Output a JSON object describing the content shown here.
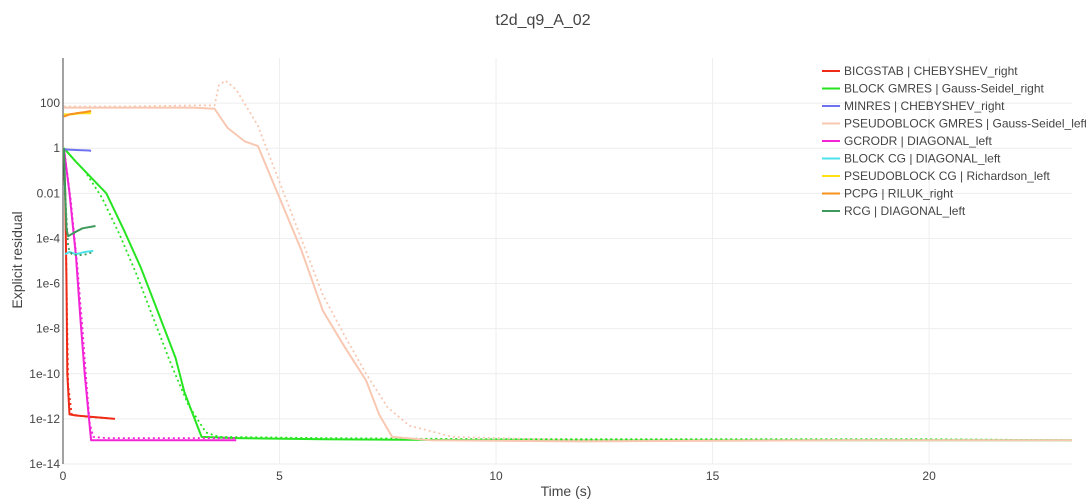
{
  "chart_data": {
    "type": "line",
    "title": "t2d_q9_A_02",
    "xlabel": "Time (s)",
    "ylabel": "Explicit residual",
    "y_scale": "log",
    "xlim": [
      0,
      23.3
    ],
    "ylim_log10": [
      -14,
      4
    ],
    "grid": true,
    "legend_position": "top-right",
    "x_ticks": [
      0,
      5,
      10,
      15,
      20
    ],
    "x_tick_labels": [
      "0",
      "5",
      "10",
      "15",
      "20"
    ],
    "y_ticks_log10": [
      2,
      0,
      -2,
      -4,
      -6,
      -8,
      -10,
      -12,
      -14
    ],
    "y_tick_labels": [
      "100",
      "1",
      "0.01",
      "1e-4",
      "1e-6",
      "1e-8",
      "1e-10",
      "1e-12",
      "1e-14"
    ],
    "series": [
      {
        "name": "BICGSTAB | CHEBYSHEV_right",
        "color": "#ef2b17",
        "points": [
          [
            0.02,
            0
          ],
          [
            0.05,
            -2
          ],
          [
            0.08,
            -6
          ],
          [
            0.1,
            -10
          ],
          [
            0.15,
            -11.8
          ],
          [
            0.3,
            -11.85
          ],
          [
            0.6,
            -11.9
          ],
          [
            0.9,
            -11.95
          ],
          [
            1.2,
            -12
          ]
        ],
        "dotted_points": [
          [
            0.02,
            0
          ],
          [
            0.06,
            -3
          ],
          [
            0.09,
            -7
          ],
          [
            0.12,
            -10.5
          ],
          [
            0.2,
            -11.8
          ],
          [
            0.5,
            -11.9
          ],
          [
            0.9,
            -11.95
          ],
          [
            1.2,
            -12
          ]
        ]
      },
      {
        "name": "BLOCK GMRES | Gauss-Seidel_right",
        "color": "#27e421",
        "points": [
          [
            0.02,
            0
          ],
          [
            0.3,
            -0.6
          ],
          [
            0.6,
            -1.2
          ],
          [
            1.0,
            -2.0
          ],
          [
            1.4,
            -3.6
          ],
          [
            1.8,
            -5.3
          ],
          [
            2.2,
            -7.3
          ],
          [
            2.6,
            -9.3
          ],
          [
            2.8,
            -10.8
          ],
          [
            3.0,
            -11.8
          ],
          [
            3.2,
            -12.8
          ],
          [
            4.0,
            -12.85
          ],
          [
            6.0,
            -12.9
          ],
          [
            10.0,
            -12.95
          ],
          [
            15.0,
            -12.95
          ],
          [
            20.0,
            -12.95
          ],
          [
            23.3,
            -12.95
          ]
        ],
        "dotted_points": [
          [
            0.02,
            0
          ],
          [
            0.25,
            -0.5
          ],
          [
            0.5,
            -1.0
          ],
          [
            0.9,
            -2.2
          ],
          [
            1.3,
            -3.8
          ],
          [
            1.7,
            -5.6
          ],
          [
            2.1,
            -7.6
          ],
          [
            2.5,
            -9.6
          ],
          [
            2.9,
            -11.4
          ],
          [
            3.3,
            -12.6
          ],
          [
            3.6,
            -12.8
          ],
          [
            6.0,
            -12.85
          ],
          [
            10.0,
            -12.9
          ],
          [
            15.0,
            -12.9
          ],
          [
            20.0,
            -12.9
          ],
          [
            23.3,
            -12.95
          ]
        ]
      },
      {
        "name": "MINRES | CHEBYSHEV_right",
        "color": "#6f72f0",
        "points": [
          [
            0.02,
            -0.05
          ],
          [
            0.3,
            -0.08
          ],
          [
            0.6,
            -0.1
          ],
          [
            0.65,
            -0.12
          ]
        ]
      },
      {
        "name": "PSEUDOBLOCK GMRES | Gauss-Seidel_left",
        "color": "#f8c8b2",
        "points": [
          [
            0.02,
            1.8
          ],
          [
            1.0,
            1.8
          ],
          [
            2.0,
            1.8
          ],
          [
            3.0,
            1.8
          ],
          [
            3.5,
            1.75
          ],
          [
            3.8,
            0.9
          ],
          [
            4.2,
            0.3
          ],
          [
            4.5,
            0.1
          ],
          [
            5.0,
            -2.2
          ],
          [
            5.5,
            -4.5
          ],
          [
            6.0,
            -7.2
          ],
          [
            6.5,
            -8.8
          ],
          [
            7.0,
            -10.3
          ],
          [
            7.3,
            -11.8
          ],
          [
            7.6,
            -12.8
          ],
          [
            8.5,
            -12.95
          ],
          [
            12.0,
            -13.0
          ],
          [
            18.0,
            -12.95
          ],
          [
            23.3,
            -12.95
          ]
        ],
        "dotted_points": [
          [
            0.02,
            1.85
          ],
          [
            1.5,
            1.85
          ],
          [
            3.0,
            1.9
          ],
          [
            3.5,
            1.9
          ],
          [
            3.6,
            2.8
          ],
          [
            3.75,
            3.0
          ],
          [
            4.0,
            2.6
          ],
          [
            4.5,
            1.0
          ],
          [
            5.0,
            -1.5
          ],
          [
            5.5,
            -4.0
          ],
          [
            6.0,
            -6.5
          ],
          [
            6.5,
            -8.3
          ],
          [
            7.0,
            -10.0
          ],
          [
            7.5,
            -11.5
          ],
          [
            8.0,
            -12.3
          ],
          [
            9.0,
            -12.8
          ],
          [
            12.0,
            -12.95
          ],
          [
            18.0,
            -12.95
          ],
          [
            23.3,
            -12.95
          ]
        ]
      },
      {
        "name": "GCRODR | DIAGONAL_left",
        "color": "#f224d6",
        "points": [
          [
            0.02,
            0
          ],
          [
            0.15,
            -2.0
          ],
          [
            0.3,
            -4.8
          ],
          [
            0.4,
            -7.5
          ],
          [
            0.5,
            -10.0
          ],
          [
            0.6,
            -12.0
          ],
          [
            0.65,
            -12.95
          ],
          [
            1.0,
            -12.95
          ],
          [
            2.0,
            -12.95
          ],
          [
            3.0,
            -12.95
          ],
          [
            4.0,
            -12.95
          ]
        ],
        "dotted_points": [
          [
            0.02,
            0
          ],
          [
            0.18,
            -2.3
          ],
          [
            0.33,
            -5.2
          ],
          [
            0.45,
            -8.0
          ],
          [
            0.55,
            -10.6
          ],
          [
            0.62,
            -12.2
          ],
          [
            0.7,
            -12.8
          ],
          [
            1.0,
            -12.85
          ],
          [
            2.0,
            -12.85
          ],
          [
            3.0,
            -12.85
          ],
          [
            4.0,
            -12.85
          ]
        ]
      },
      {
        "name": "BLOCK CG | DIAGONAL_left",
        "color": "#4ee3ec",
        "points": [
          [
            0.05,
            -4.7
          ],
          [
            0.15,
            -4.6
          ],
          [
            0.3,
            -4.7
          ],
          [
            0.5,
            -4.6
          ],
          [
            0.7,
            -4.55
          ]
        ]
      },
      {
        "name": "PSEUDOBLOCK CG | Richardson_left",
        "color": "#ffe312",
        "points": [
          [
            0.02,
            1.5
          ],
          [
            0.2,
            1.5
          ],
          [
            0.4,
            1.55
          ],
          [
            0.65,
            1.55
          ]
        ]
      },
      {
        "name": "PCPG | RILUK_right",
        "color": "#f7921f",
        "points": [
          [
            0.02,
            1.4
          ],
          [
            0.15,
            1.5
          ],
          [
            0.3,
            1.55
          ],
          [
            0.5,
            1.6
          ],
          [
            0.65,
            1.65
          ]
        ]
      },
      {
        "name": "RCG | DIAGONAL_left",
        "color": "#3e9a5b",
        "points": [
          [
            0.02,
            0
          ],
          [
            0.05,
            -2.0
          ],
          [
            0.08,
            -3.6
          ],
          [
            0.12,
            -3.9
          ],
          [
            0.25,
            -3.75
          ],
          [
            0.45,
            -3.55
          ],
          [
            0.75,
            -3.45
          ]
        ],
        "dotted_points": [
          [
            0.02,
            0
          ],
          [
            0.06,
            -2.4
          ],
          [
            0.12,
            -4.4
          ],
          [
            0.2,
            -4.7
          ],
          [
            0.35,
            -4.75
          ],
          [
            0.55,
            -4.7
          ],
          [
            0.7,
            -4.6
          ]
        ]
      }
    ]
  }
}
